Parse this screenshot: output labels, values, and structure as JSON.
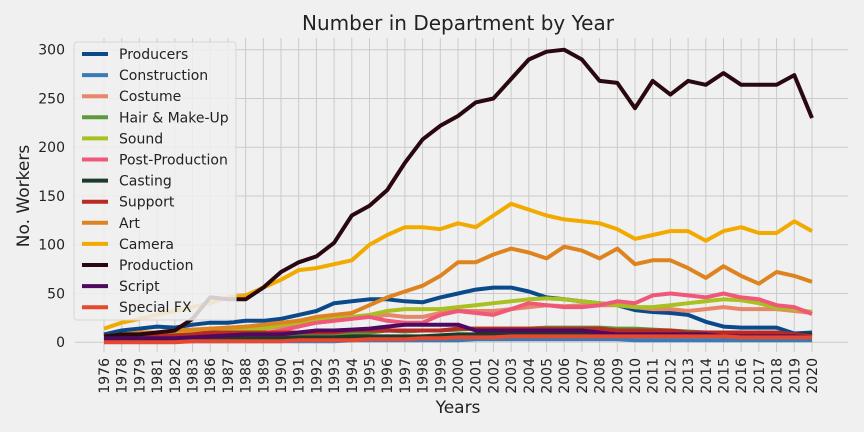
{
  "chart_data": {
    "type": "line",
    "title": "Number in Department by Year",
    "xlabel": "Years",
    "ylabel": "No. Workers",
    "ylim": [
      -10,
      312
    ],
    "yticks": [
      0,
      50,
      100,
      150,
      200,
      250,
      300
    ],
    "grid": true,
    "legend_position": "top-left",
    "x": [
      "1976",
      "1978",
      "1979",
      "1981",
      "1982",
      "1983",
      "1986",
      "1987",
      "1988",
      "1989",
      "1990",
      "1991",
      "1992",
      "1993",
      "1994",
      "1995",
      "1996",
      "1997",
      "1998",
      "1999",
      "2000",
      "2001",
      "2002",
      "2003",
      "2004",
      "2005",
      "2006",
      "2007",
      "2008",
      "2009",
      "2010",
      "2011",
      "2012",
      "2013",
      "2014",
      "2015",
      "2016",
      "2017",
      "2018",
      "2019",
      "2020"
    ],
    "series": [
      {
        "name": "Producers",
        "color": "#0a4a8a",
        "values": [
          8,
          12,
          14,
          16,
          15,
          18,
          20,
          20,
          22,
          22,
          24,
          28,
          32,
          40,
          42,
          44,
          44,
          42,
          41,
          46,
          50,
          54,
          56,
          56,
          52,
          46,
          44,
          42,
          40,
          38,
          33,
          31,
          30,
          28,
          21,
          16,
          15,
          15,
          15,
          9,
          10
        ]
      },
      {
        "name": "Construction",
        "color": "#3b7bb5",
        "values": [
          2,
          2,
          2,
          2,
          1,
          1,
          1,
          1,
          1,
          1,
          1,
          1,
          1,
          1,
          2,
          2,
          2,
          2,
          2,
          2,
          2,
          3,
          3,
          3,
          3,
          3,
          3,
          3,
          3,
          3,
          2,
          2,
          2,
          2,
          2,
          2,
          2,
          2,
          2,
          2,
          2
        ]
      },
      {
        "name": "Costume",
        "color": "#e8866a",
        "values": [
          3,
          4,
          5,
          6,
          6,
          7,
          10,
          12,
          12,
          14,
          16,
          18,
          20,
          22,
          24,
          26,
          28,
          26,
          26,
          30,
          32,
          32,
          32,
          34,
          36,
          38,
          37,
          38,
          38,
          38,
          36,
          34,
          34,
          32,
          34,
          36,
          34,
          34,
          34,
          32,
          30
        ]
      },
      {
        "name": "Hair & Make-Up",
        "color": "#5e9a3a",
        "values": [
          4,
          4,
          4,
          4,
          4,
          5,
          5,
          5,
          6,
          6,
          6,
          7,
          7,
          8,
          9,
          10,
          12,
          11,
          12,
          12,
          13,
          14,
          14,
          14,
          14,
          15,
          15,
          15,
          15,
          14,
          14,
          13,
          12,
          11,
          10,
          10,
          10,
          9,
          8,
          8,
          7
        ]
      },
      {
        "name": "Sound",
        "color": "#a8c020",
        "values": [
          5,
          7,
          8,
          8,
          9,
          9,
          10,
          12,
          12,
          14,
          18,
          20,
          22,
          24,
          26,
          28,
          32,
          34,
          34,
          34,
          36,
          38,
          40,
          42,
          44,
          45,
          44,
          42,
          40,
          38,
          36,
          36,
          38,
          40,
          42,
          44,
          43,
          40,
          35,
          34,
          31
        ]
      },
      {
        "name": "Post-Production",
        "color": "#f0587a",
        "values": [
          2,
          2,
          2,
          3,
          3,
          3,
          5,
          6,
          7,
          9,
          12,
          16,
          20,
          22,
          24,
          26,
          22,
          20,
          20,
          28,
          32,
          30,
          28,
          34,
          40,
          38,
          36,
          36,
          38,
          42,
          40,
          48,
          50,
          48,
          46,
          50,
          46,
          44,
          38,
          36,
          29
        ]
      },
      {
        "name": "Casting",
        "color": "#1e3a2a",
        "values": [
          2,
          3,
          3,
          3,
          3,
          3,
          4,
          4,
          4,
          4,
          4,
          5,
          5,
          5,
          6,
          6,
          6,
          6,
          6,
          7,
          8,
          8,
          8,
          8,
          8,
          8,
          8,
          8,
          8,
          8,
          8,
          8,
          9,
          9,
          9,
          9,
          9,
          9,
          9,
          8,
          8
        ]
      },
      {
        "name": "Support",
        "color": "#b82a24",
        "values": [
          6,
          8,
          8,
          7,
          7,
          8,
          10,
          10,
          10,
          10,
          10,
          10,
          10,
          10,
          12,
          12,
          12,
          12,
          12,
          12,
          14,
          14,
          14,
          14,
          14,
          14,
          14,
          14,
          14,
          12,
          12,
          12,
          12,
          10,
          10,
          10,
          10,
          10,
          10,
          8,
          6
        ]
      },
      {
        "name": "Art",
        "color": "#dd8420",
        "values": [
          6,
          8,
          10,
          10,
          12,
          13,
          14,
          15,
          16,
          18,
          20,
          22,
          26,
          28,
          30,
          38,
          46,
          52,
          58,
          68,
          82,
          82,
          90,
          96,
          92,
          86,
          98,
          94,
          86,
          96,
          80,
          84,
          84,
          76,
          66,
          78,
          68,
          60,
          72,
          68,
          62
        ]
      },
      {
        "name": "Camera",
        "color": "#f2aa00",
        "values": [
          14,
          20,
          24,
          28,
          32,
          36,
          40,
          46,
          48,
          56,
          64,
          74,
          76,
          80,
          84,
          100,
          110,
          118,
          118,
          116,
          122,
          118,
          130,
          142,
          136,
          130,
          126,
          124,
          122,
          116,
          106,
          110,
          114,
          114,
          104,
          114,
          118,
          112,
          112,
          124,
          114
        ]
      },
      {
        "name": "Production",
        "color": "#2a0810",
        "values": [
          6,
          8,
          8,
          10,
          12,
          24,
          46,
          44,
          44,
          56,
          72,
          82,
          88,
          102,
          130,
          140,
          156,
          184,
          208,
          222,
          232,
          246,
          250,
          270,
          290,
          298,
          300,
          290,
          268,
          266,
          240,
          268,
          254,
          268,
          264,
          276,
          264,
          264,
          264,
          274,
          230
        ]
      },
      {
        "name": "Script",
        "color": "#4e0a5e",
        "values": [
          4,
          4,
          4,
          4,
          4,
          5,
          6,
          7,
          8,
          8,
          8,
          10,
          12,
          12,
          13,
          14,
          16,
          18,
          18,
          18,
          18,
          12,
          12,
          12,
          12,
          12,
          12,
          12,
          10,
          8,
          8,
          8,
          8,
          8,
          8,
          6,
          6,
          6,
          6,
          6,
          5
        ]
      },
      {
        "name": "Special FX",
        "color": "#e64830",
        "values": [
          0,
          0,
          0,
          0,
          0,
          1,
          1,
          1,
          1,
          1,
          1,
          2,
          2,
          2,
          2,
          3,
          3,
          3,
          4,
          4,
          5,
          5,
          5,
          6,
          6,
          6,
          6,
          6,
          6,
          6,
          6,
          6,
          6,
          6,
          6,
          6,
          5,
          5,
          5,
          5,
          5
        ]
      }
    ]
  }
}
